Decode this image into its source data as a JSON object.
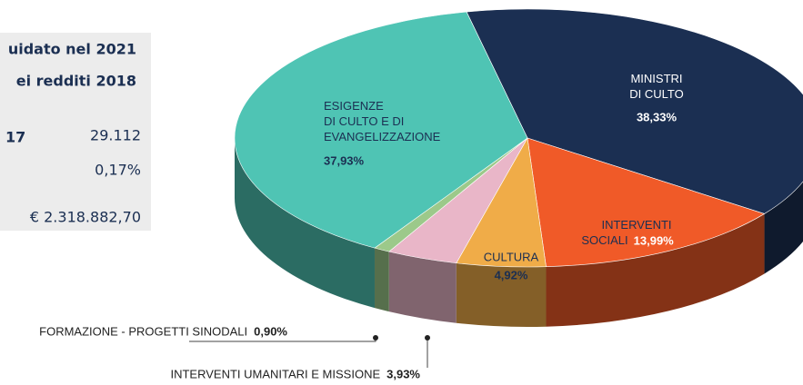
{
  "panel": {
    "lines": [
      "uidato nel 2021",
      "ei redditi 2018"
    ],
    "rows": [
      {
        "label": "17",
        "value": "29.112"
      },
      {
        "label": null,
        "value": "0,17%"
      },
      {
        "label": null,
        "value": "€ 2.318.882,70"
      }
    ]
  },
  "chart_data": {
    "type": "pie3d",
    "categories": [
      "MINISTRI\nDI CULTO",
      "INTERVENTI\nSOCIALI",
      "CULTURA",
      "INTERVENTI UMANITARI E MISSIONE",
      "FORMAZIONE - PROGETTI SINODALI",
      "ESIGENZE\nDI CULTO E DI\nEVANGELIZZAZIONE"
    ],
    "values": [
      38.33,
      13.99,
      4.92,
      3.93,
      0.9,
      37.93
    ],
    "value_labels": [
      "38,33%",
      "13,99%",
      "4,92%",
      "3,93%",
      "0,90%",
      "37,93%"
    ],
    "colors": [
      "#1b2f52",
      "#f05a28",
      "#f0ac48",
      "#e9b6c8",
      "#9cc98a",
      "#4fc4b4"
    ]
  }
}
